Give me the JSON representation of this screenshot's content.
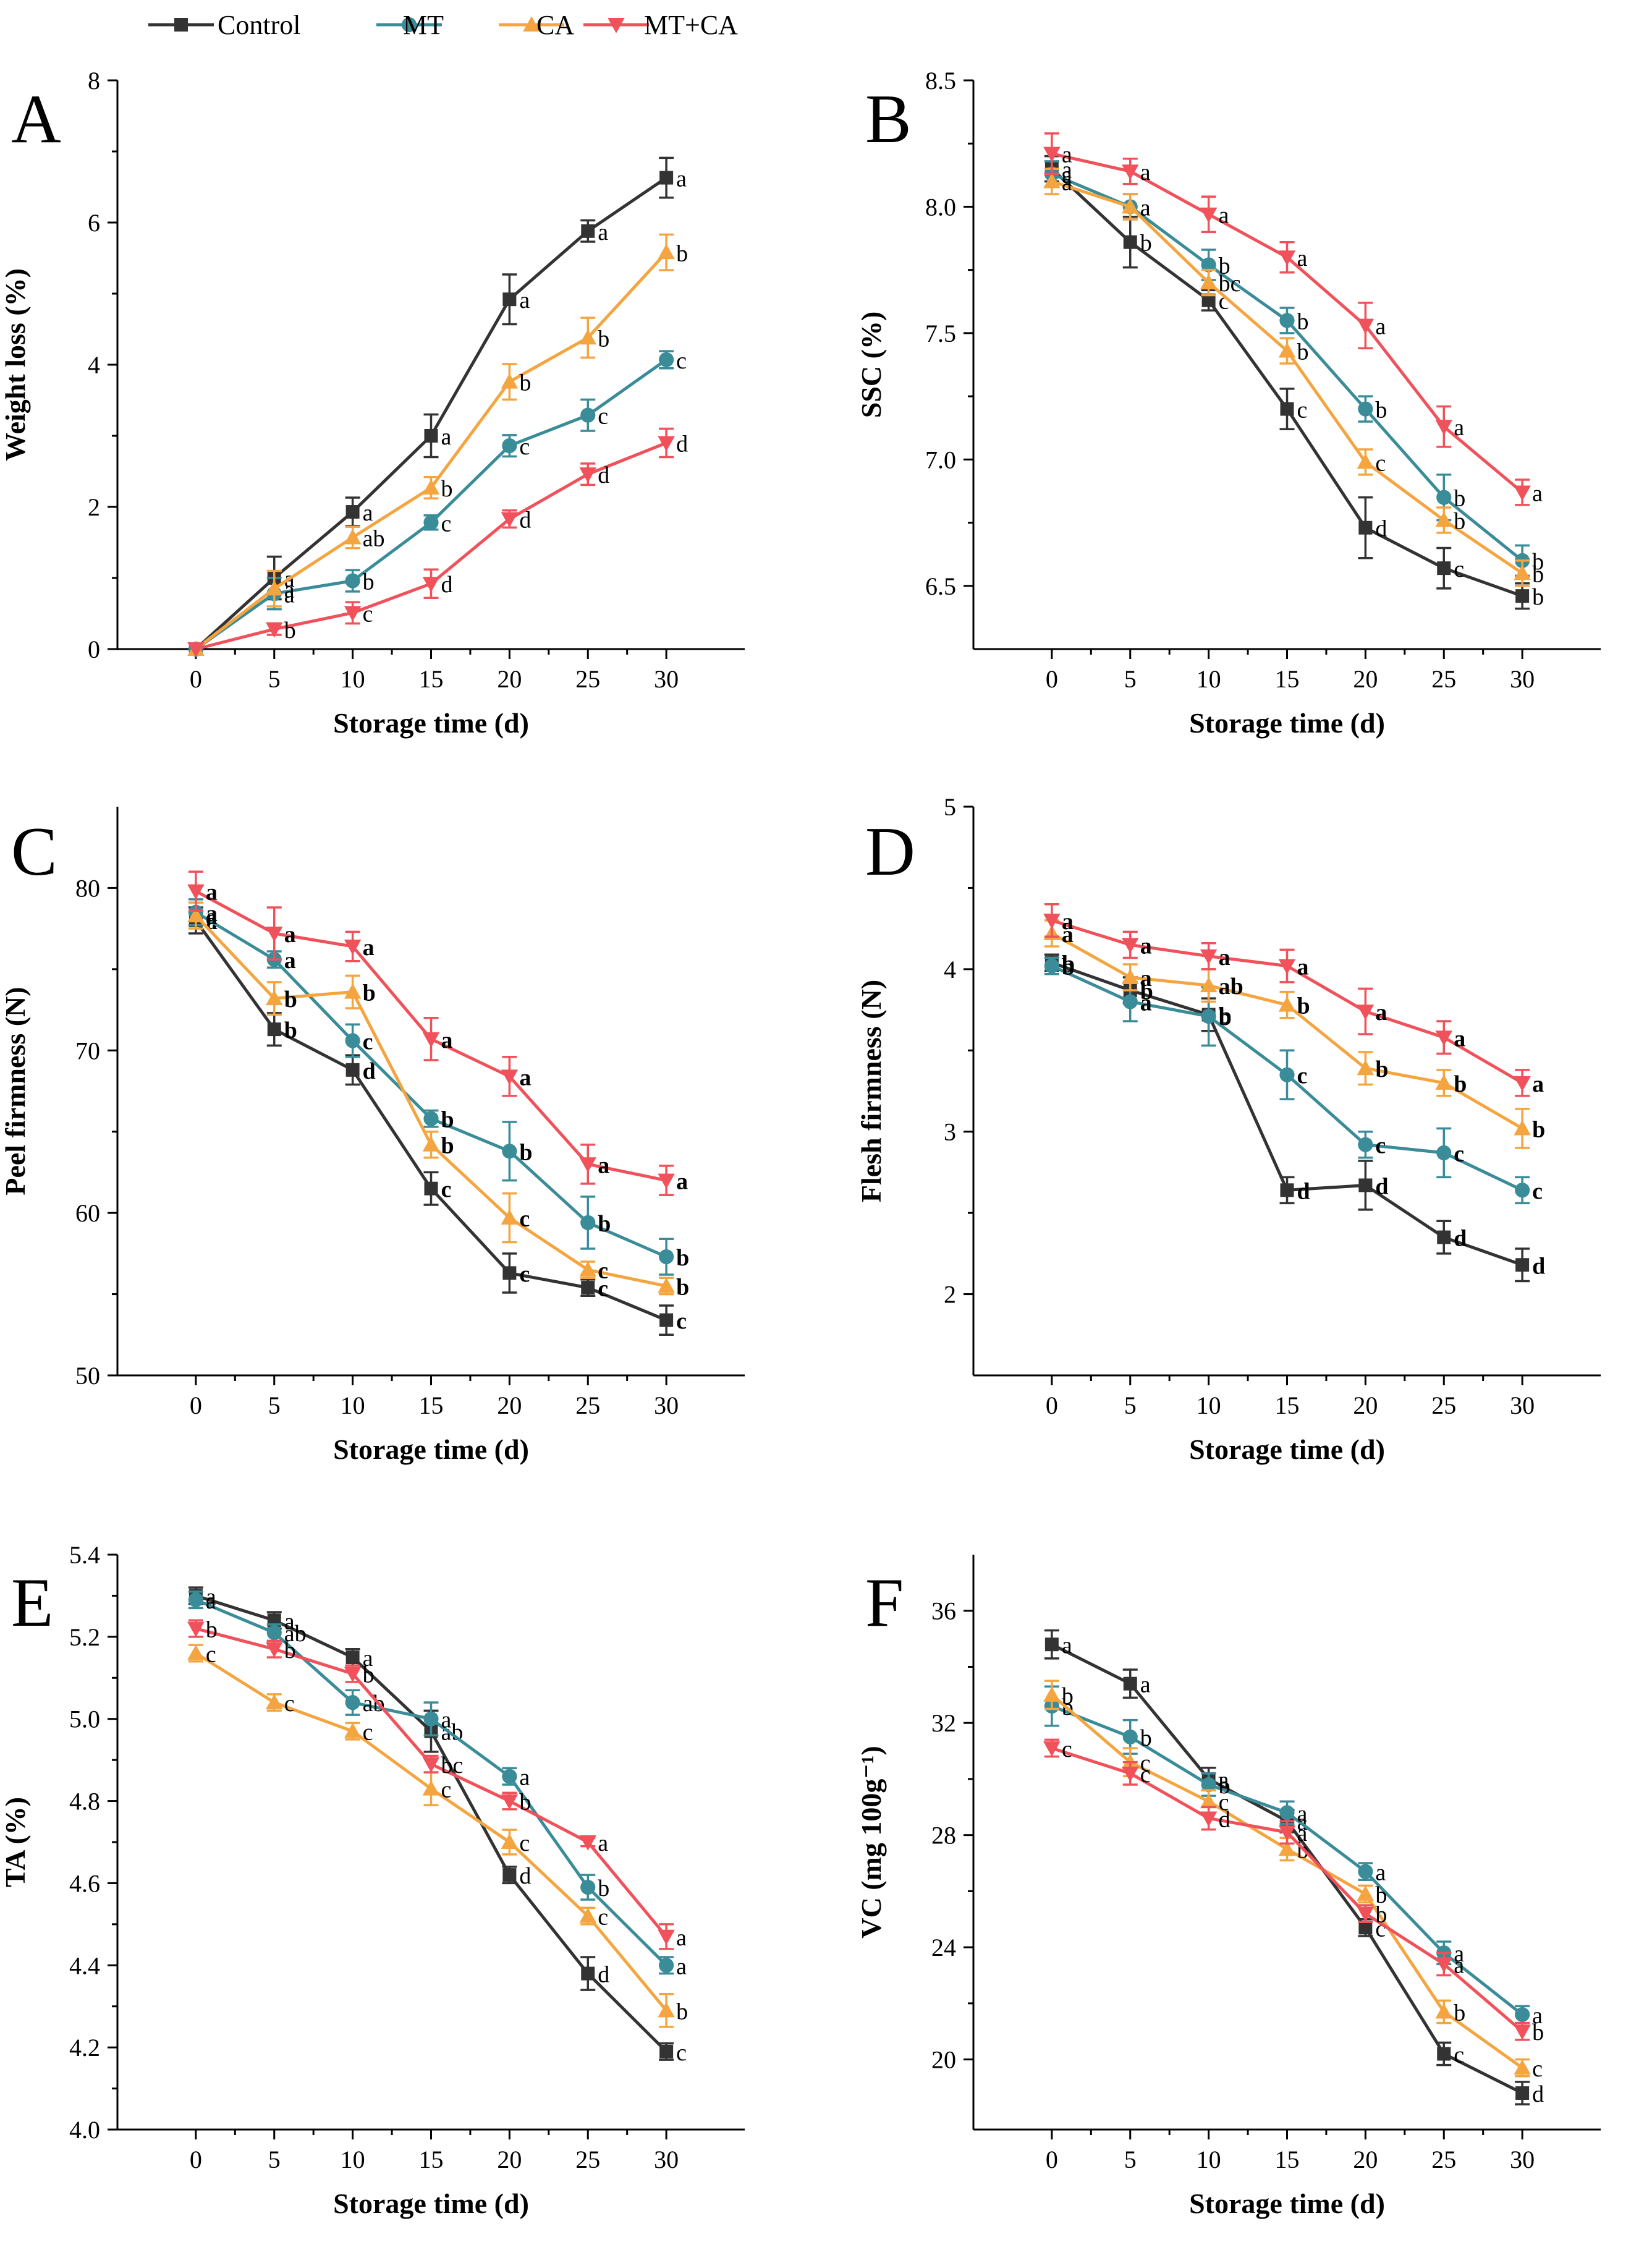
{
  "legend": {
    "items": [
      {
        "label": "Control",
        "color": "#333333",
        "marker": "square"
      },
      {
        "label": "MT",
        "color": "#3a8c99",
        "marker": "circle"
      },
      {
        "label": "CA",
        "color": "#f5a540",
        "marker": "triangle-up"
      },
      {
        "label": "MT+CA",
        "color": "#f0515a",
        "marker": "triangle-down"
      }
    ]
  },
  "chart_data": [
    {
      "panel": "A",
      "type": "line",
      "xlabel": "Storage time (d)",
      "ylabel": "Weight loss (%)",
      "x": [
        0,
        5,
        10,
        15,
        20,
        25,
        30
      ],
      "xticks": [
        "0",
        "5",
        "10",
        "15",
        "20",
        "25",
        "30"
      ],
      "ylim": [
        0,
        8
      ],
      "yticks": [
        0,
        2,
        4,
        6,
        8
      ],
      "ytick_labels": [
        "0",
        "2",
        "4",
        "6",
        "8"
      ],
      "series": [
        {
          "name": "Control",
          "values": [
            0,
            1.0,
            1.93,
            3.0,
            4.92,
            5.88,
            6.63
          ],
          "err": [
            0,
            0.3,
            0.2,
            0.3,
            0.35,
            0.15,
            0.28
          ],
          "letters": [
            "",
            "a",
            "a",
            "a",
            "a",
            "a",
            "a"
          ]
        },
        {
          "name": "MT",
          "values": [
            0,
            0.78,
            0.96,
            1.78,
            2.86,
            3.29,
            4.07
          ],
          "err": [
            0,
            0.22,
            0.15,
            0.1,
            0.15,
            0.22,
            0.12
          ],
          "letters": [
            "",
            "a",
            "b",
            "c",
            "c",
            "c",
            "c"
          ]
        },
        {
          "name": "CA",
          "values": [
            0,
            0.85,
            1.57,
            2.27,
            3.76,
            4.38,
            5.58
          ],
          "err": [
            0,
            0.25,
            0.15,
            0.15,
            0.25,
            0.28,
            0.25
          ],
          "letters": [
            "",
            "a",
            "ab",
            "b",
            "b",
            "b",
            "b"
          ]
        },
        {
          "name": "MT+CA",
          "values": [
            0,
            0.28,
            0.51,
            0.92,
            1.83,
            2.46,
            2.9
          ],
          "err": [
            0,
            0.08,
            0.15,
            0.2,
            0.12,
            0.15,
            0.2
          ],
          "letters": [
            "",
            "b",
            "c",
            "d",
            "d",
            "d",
            "d"
          ]
        }
      ]
    },
    {
      "panel": "B",
      "type": "line",
      "xlabel": "Storage time (d)",
      "ylabel": "SSC (%)",
      "x": [
        0,
        5,
        10,
        15,
        20,
        25,
        30
      ],
      "xticks": [
        "0",
        "5",
        "10",
        "15",
        "20",
        "25",
        "30"
      ],
      "ylim": [
        6.25,
        8.5
      ],
      "yticks": [
        6.5,
        7.0,
        7.5,
        8.0,
        8.5
      ],
      "ytick_labels": [
        "6.5",
        "7.0",
        "7.5",
        "8.0",
        "8.5"
      ],
      "series": [
        {
          "name": "Control",
          "values": [
            8.15,
            7.86,
            7.63,
            7.2,
            6.73,
            6.57,
            6.46
          ],
          "err": [
            0.05,
            0.1,
            0.04,
            0.08,
            0.12,
            0.08,
            0.05
          ],
          "letters": [
            "a",
            "b",
            "c",
            "c",
            "d",
            "c",
            "b"
          ]
        },
        {
          "name": "MT",
          "values": [
            8.13,
            8.0,
            7.77,
            7.55,
            7.2,
            6.85,
            6.6
          ],
          "err": [
            0.05,
            0.05,
            0.06,
            0.05,
            0.05,
            0.09,
            0.06
          ],
          "letters": [
            "a",
            "a",
            "b",
            "b",
            "b",
            "b",
            "b"
          ]
        },
        {
          "name": "CA",
          "values": [
            8.1,
            8.0,
            7.7,
            7.43,
            6.99,
            6.76,
            6.55
          ],
          "err": [
            0.05,
            0.05,
            0.05,
            0.05,
            0.05,
            0.05,
            0.05
          ],
          "letters": [
            "a",
            "a",
            "bc",
            "b",
            "c",
            "b",
            "b"
          ]
        },
        {
          "name": "MT+CA",
          "values": [
            8.21,
            8.14,
            7.97,
            7.8,
            7.53,
            7.13,
            6.87
          ],
          "err": [
            0.08,
            0.05,
            0.07,
            0.06,
            0.09,
            0.08,
            0.05
          ],
          "letters": [
            "a",
            "a",
            "a",
            "a",
            "a",
            "a",
            "a"
          ]
        }
      ]
    },
    {
      "panel": "C",
      "type": "line",
      "xlabel": "Storage time (d)",
      "ylabel": "Peel firmness (N)",
      "x": [
        0,
        5,
        10,
        15,
        20,
        25,
        30
      ],
      "xticks": [
        "0",
        "5",
        "10",
        "15",
        "20",
        "25",
        "30"
      ],
      "ylim": [
        50,
        85
      ],
      "yticks": [
        50,
        60,
        70,
        80
      ],
      "ytick_labels": [
        "50",
        "60",
        "70",
        "80"
      ],
      "series": [
        {
          "name": "Control",
          "values": [
            78.0,
            71.3,
            68.8,
            61.5,
            56.3,
            55.4,
            53.4
          ],
          "err": [
            0.8,
            1.0,
            0.9,
            1.0,
            1.2,
            0.5,
            0.9
          ],
          "letters": [
            "a",
            "b",
            "d",
            "c",
            "c",
            "c",
            "c"
          ]
        },
        {
          "name": "MT",
          "values": [
            78.5,
            75.6,
            70.6,
            65.8,
            63.8,
            59.4,
            57.3
          ],
          "err": [
            0.8,
            0.5,
            1.0,
            0.5,
            1.8,
            1.6,
            1.1
          ],
          "letters": [
            "a",
            "a",
            "c",
            "b",
            "b",
            "b",
            "b"
          ]
        },
        {
          "name": "CA",
          "values": [
            78.3,
            73.2,
            73.6,
            64.2,
            59.7,
            56.5,
            55.5
          ],
          "err": [
            0.8,
            1.0,
            1.0,
            0.8,
            1.5,
            0.5,
            0.5
          ],
          "letters": [
            "a",
            "b",
            "b",
            "b",
            "c",
            "c",
            "b"
          ]
        },
        {
          "name": "MT+CA",
          "values": [
            79.8,
            77.2,
            76.4,
            70.7,
            68.4,
            63.0,
            62.0
          ],
          "err": [
            1.2,
            1.6,
            0.9,
            1.3,
            1.2,
            1.2,
            0.9
          ],
          "letters": [
            "a",
            "a",
            "a",
            "a",
            "a",
            "a",
            "a"
          ]
        }
      ]
    },
    {
      "panel": "D",
      "type": "line",
      "xlabel": "Storage time (d)",
      "ylabel": "Flesh firmness (N)",
      "x": [
        0,
        5,
        10,
        15,
        20,
        25,
        30
      ],
      "xticks": [
        "0",
        "5",
        "10",
        "15",
        "20",
        "25",
        "30"
      ],
      "ylim": [
        1.5,
        5
      ],
      "yticks": [
        2,
        3,
        4,
        5
      ],
      "ytick_labels": [
        "2",
        "3",
        "4",
        "5"
      ],
      "series": [
        {
          "name": "Control",
          "values": [
            4.04,
            3.87,
            3.72,
            2.64,
            2.67,
            2.35,
            2.18
          ],
          "err": [
            0.05,
            0.08,
            0.1,
            0.08,
            0.15,
            0.1,
            0.1
          ],
          "letters": [
            "b",
            "b",
            "b",
            "d",
            "d",
            "d",
            "d"
          ]
        },
        {
          "name": "MT",
          "values": [
            4.02,
            3.8,
            3.71,
            3.35,
            2.92,
            2.87,
            2.64
          ],
          "err": [
            0.05,
            0.12,
            0.18,
            0.15,
            0.08,
            0.15,
            0.08
          ],
          "letters": [
            "b",
            "a",
            "b",
            "c",
            "c",
            "c",
            "c"
          ]
        },
        {
          "name": "CA",
          "values": [
            4.22,
            3.95,
            3.9,
            3.78,
            3.39,
            3.3,
            3.02
          ],
          "err": [
            0.08,
            0.08,
            0.1,
            0.08,
            0.1,
            0.08,
            0.12
          ],
          "letters": [
            "a",
            "a",
            "ab",
            "b",
            "b",
            "b",
            "b"
          ]
        },
        {
          "name": "MT+CA",
          "values": [
            4.3,
            4.15,
            4.08,
            4.02,
            3.74,
            3.58,
            3.3
          ],
          "err": [
            0.1,
            0.08,
            0.08,
            0.1,
            0.14,
            0.1,
            0.08
          ],
          "letters": [
            "a",
            "a",
            "a",
            "a",
            "a",
            "a",
            "a"
          ]
        }
      ]
    },
    {
      "panel": "E",
      "type": "line",
      "xlabel": "Storage time (d)",
      "ylabel": "TA (%)",
      "x": [
        0,
        5,
        10,
        15,
        20,
        25,
        30
      ],
      "xticks": [
        "0",
        "5",
        "10",
        "15",
        "20",
        "25",
        "30"
      ],
      "ylim": [
        4.0,
        5.4
      ],
      "yticks": [
        4.0,
        4.2,
        4.4,
        4.6,
        4.8,
        5.0,
        5.2,
        5.4
      ],
      "ytick_labels": [
        "4.0",
        "4.2",
        "4.4",
        "4.6",
        "4.8",
        "5.0",
        "5.2",
        "5.4"
      ],
      "series": [
        {
          "name": "Control",
          "values": [
            5.3,
            5.24,
            5.15,
            4.97,
            4.62,
            4.38,
            4.19
          ],
          "err": [
            0.02,
            0.02,
            0.02,
            0.05,
            0.02,
            0.04,
            0.02
          ],
          "letters": [
            "a",
            "a",
            "a",
            "ab",
            "d",
            "d",
            "c"
          ]
        },
        {
          "name": "MT",
          "values": [
            5.29,
            5.21,
            5.04,
            5.0,
            4.86,
            4.59,
            4.4
          ],
          "err": [
            0.02,
            0.02,
            0.03,
            0.04,
            0.02,
            0.03,
            0.02
          ],
          "letters": [
            "a",
            "ab",
            "ab",
            "a",
            "a",
            "b",
            "a"
          ]
        },
        {
          "name": "CA",
          "values": [
            5.16,
            5.04,
            4.97,
            4.83,
            4.7,
            4.52,
            4.29
          ],
          "err": [
            0.02,
            0.02,
            0.02,
            0.04,
            0.03,
            0.02,
            0.04
          ],
          "letters": [
            "c",
            "c",
            "c",
            "c",
            "c",
            "c",
            "b"
          ]
        },
        {
          "name": "MT+CA",
          "values": [
            5.22,
            5.17,
            5.11,
            4.89,
            4.8,
            4.7,
            4.47
          ],
          "err": [
            0.02,
            0.02,
            0.02,
            0.02,
            0.02,
            0.01,
            0.03
          ],
          "letters": [
            "b",
            "b",
            "b",
            "bc",
            "b",
            "a",
            "a"
          ]
        }
      ]
    },
    {
      "panel": "F",
      "type": "line",
      "xlabel": "Storage time (d)",
      "ylabel": "VC (mg 100g⁻¹)",
      "x": [
        0,
        5,
        10,
        15,
        20,
        25,
        30
      ],
      "xticks": [
        "0",
        "5",
        "10",
        "15",
        "20",
        "25",
        "30"
      ],
      "ylim": [
        17.5,
        38
      ],
      "yticks": [
        20,
        24,
        28,
        32,
        36
      ],
      "ytick_labels": [
        "20",
        "24",
        "28",
        "32",
        "36"
      ],
      "series": [
        {
          "name": "Control",
          "values": [
            34.8,
            33.4,
            30.0,
            28.5,
            24.7,
            20.2,
            18.8
          ],
          "err": [
            0.5,
            0.5,
            0.4,
            0.4,
            0.3,
            0.4,
            0.4
          ],
          "letters": [
            "a",
            "a",
            "a",
            "a",
            "c",
            "c",
            "d"
          ]
        },
        {
          "name": "MT",
          "values": [
            32.6,
            31.5,
            29.8,
            28.8,
            26.7,
            23.8,
            21.6
          ],
          "err": [
            0.7,
            0.6,
            0.4,
            0.4,
            0.3,
            0.4,
            0.3
          ],
          "letters": [
            "b",
            "b",
            "b",
            "a",
            "a",
            "a",
            "a"
          ]
        },
        {
          "name": "CA",
          "values": [
            33.0,
            30.6,
            29.2,
            27.5,
            25.9,
            21.7,
            19.7
          ],
          "err": [
            0.5,
            0.5,
            0.4,
            0.4,
            0.3,
            0.4,
            0.3
          ],
          "letters": [
            "b",
            "c",
            "c",
            "b",
            "b",
            "b",
            "c"
          ]
        },
        {
          "name": "MT+CA",
          "values": [
            31.1,
            30.2,
            28.6,
            28.1,
            25.2,
            23.4,
            21.0
          ],
          "err": [
            0.3,
            0.4,
            0.4,
            0.4,
            0.3,
            0.4,
            0.3
          ],
          "letters": [
            "c",
            "c",
            "d",
            "a",
            "b",
            "a",
            "b"
          ]
        }
      ]
    }
  ]
}
